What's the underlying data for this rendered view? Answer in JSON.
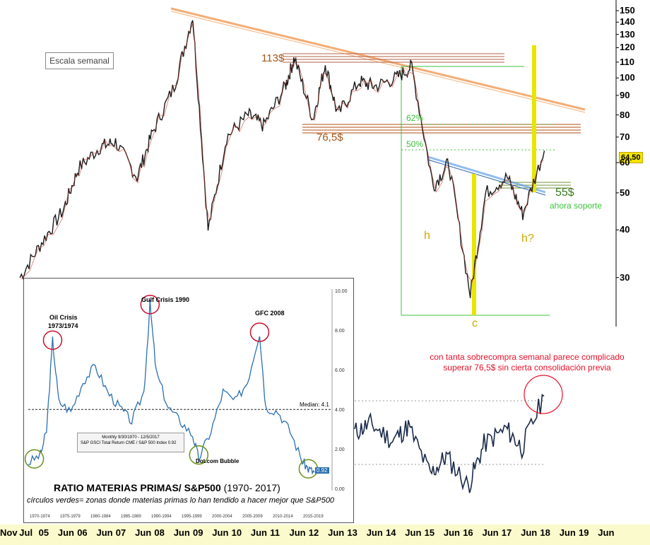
{
  "main_chart": {
    "scale_label": "Escala semanal",
    "y_ticks": [
      "150",
      "140",
      "130",
      "120",
      "110",
      "100",
      "90",
      "80",
      "70",
      "60",
      "50",
      "40",
      "30"
    ],
    "last_price": "64,50",
    "annotations": {
      "resistance": "113$",
      "support_low": "76,5$",
      "fib_62": "62%",
      "fib_50": "50%",
      "support_new": "55$",
      "support_note": "ahora soporte",
      "h_left": "h",
      "h_right": "h?",
      "c_label": "c"
    },
    "x_ticks": [
      "Nov",
      "Jul",
      "05",
      "Jun",
      "06",
      "Jun",
      "07",
      "Jun",
      "08",
      "Jun",
      "09",
      "Jun",
      "10",
      "Jun",
      "11",
      "Jun",
      "12",
      "Jun",
      "13",
      "Jun",
      "14",
      "Jun",
      "15",
      "Jun",
      "16",
      "Jun",
      "17",
      "Jun",
      "18",
      "Jun",
      "19",
      "Jun"
    ],
    "comment": "con tanta sobrecompra semanal parece complicado superar 76,5$ sin cierta consolidación previa"
  },
  "inset": {
    "title": "RATIO MATERIAS PRIMAS/ S&P500",
    "title_range": "(1970- 2017)",
    "subtitle": "círculos verdes= zonas donde materias primas lo han tendido a hacer mejor que S&P500",
    "labels": {
      "oil": "Oil Crisis",
      "oil_years": "1973/1974",
      "gulf": "Gulf Crisis 1990",
      "gfc": "GFC 2008",
      "dotcom": "Dot.com Bubble",
      "median": "Median: 4.1",
      "last": "0.92"
    },
    "legend_line1": "Monthly 9/30/1970 - 12/5/2017",
    "legend_line2": "S&P GSCI Total Return CME / S&P 500 Index  0.92",
    "y_ticks": [
      "10.00",
      "8.00",
      "6.00",
      "4.00",
      "2.00",
      "0.00"
    ],
    "x_ticks": [
      "1970-1974",
      "1975-1979",
      "1980-1984",
      "1985-1989",
      "1990-1994",
      "1995-1999",
      "2000-2004",
      "2005-2009",
      "2010-2014",
      "2015-2019"
    ]
  },
  "chart_data": [
    {
      "type": "line",
      "title": "",
      "scale": "log",
      "ylim": [
        24,
        152
      ],
      "series": [
        {
          "x": [
            "2003-11",
            "2004-06",
            "2005-01",
            "2005-06",
            "2006-01",
            "2006-06",
            "2007-01",
            "2007-06",
            "2008-01",
            "2008-07",
            "2008-12",
            "2009-06",
            "2010-01",
            "2010-06",
            "2011-01",
            "2011-04",
            "2011-10",
            "2012-02",
            "2012-06",
            "2013-01",
            "2013-06",
            "2014-01",
            "2014-06",
            "2015-01",
            "2015-06",
            "2016-01",
            "2016-06",
            "2017-01",
            "2017-06",
            "2018-01"
          ],
          "values": [
            30,
            37,
            45,
            58,
            66,
            68,
            55,
            72,
            95,
            145,
            40,
            70,
            80,
            75,
            95,
            113,
            78,
            109,
            80,
            98,
            95,
            100,
            107,
            52,
            60,
            27,
            50,
            55,
            44,
            64.5
          ]
        }
      ]
    },
    {
      "type": "line",
      "title": "RATIO MATERIAS PRIMAS/ S&P500",
      "ylabel": "",
      "ylim": [
        0,
        10
      ],
      "median": 4.1,
      "series": [
        {
          "name": "S&P GSCI Total Return CME / S&P 500 Index",
          "x": [
            1970,
            1972,
            1973,
            1974,
            1975,
            1977,
            1979,
            1981,
            1983,
            1985,
            1987,
            1989,
            1990,
            1991,
            1993,
            1995,
            1997,
            1998,
            2000,
            2002,
            2004,
            2006,
            2008,
            2009,
            2011,
            2013,
            2015,
            2016,
            2017
          ],
          "values": [
            1.4,
            1.8,
            3.0,
            7.6,
            4.5,
            4.0,
            5.5,
            6.3,
            5.0,
            4.2,
            3.5,
            5.0,
            9.4,
            6.0,
            4.2,
            3.5,
            2.8,
            1.6,
            3.0,
            5.0,
            4.5,
            5.5,
            8.0,
            4.2,
            4.0,
            3.0,
            1.5,
            1.1,
            0.92
          ]
        }
      ]
    },
    {
      "type": "line",
      "title": "",
      "series": [
        {
          "x": [
            "2013-01",
            "2013-06",
            "2014-01",
            "2014-06",
            "2015-01",
            "2015-06",
            "2016-01",
            "2016-06",
            "2017-01",
            "2017-06",
            "2018-01"
          ],
          "values": [
            55,
            62,
            48,
            60,
            20,
            35,
            10,
            45,
            58,
            42,
            85
          ]
        }
      ]
    }
  ]
}
